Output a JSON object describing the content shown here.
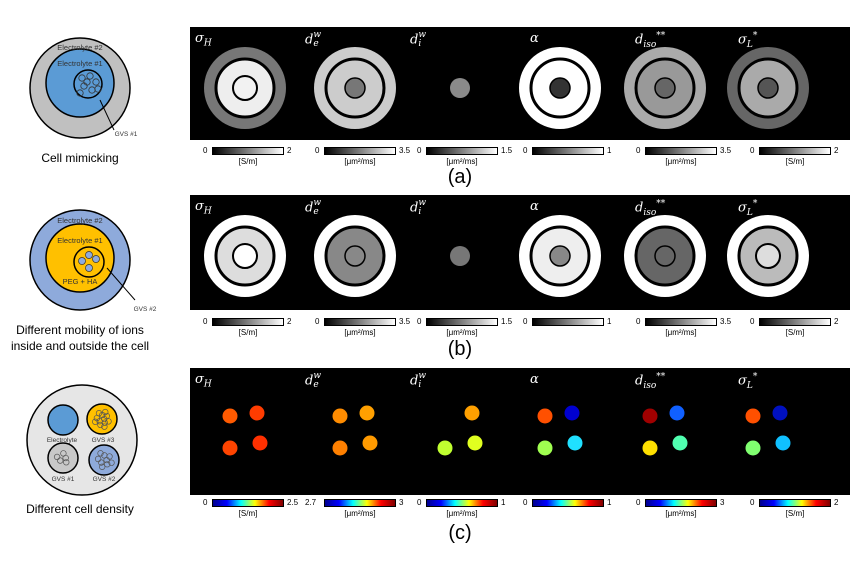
{
  "rows": [
    {
      "tag": "(a)",
      "caption": [
        "Cell mimicking"
      ],
      "diagram_labels": [
        "Electrolyte #2",
        "Electrolyte #1",
        "GVS #1"
      ],
      "colors": {
        "outer": "#c0c0c0",
        "inner": "#5b9bd5"
      },
      "colormap": "gray"
    },
    {
      "tag": "(b)",
      "caption": [
        "Different  mobility of ions",
        "inside and outside the cell"
      ],
      "diagram_labels": [
        "Electrolyte #2",
        "Electrolyte #1",
        "PEG + HA",
        "GVS #2"
      ],
      "colors": {
        "outer": "#8eaadb",
        "inner": "#ffc000"
      },
      "colormap": "gray"
    },
    {
      "tag": "(c)",
      "caption": [
        "Different   cell density"
      ],
      "diagram_labels": [
        "Electrolyte",
        "GVS #3",
        "GVS #1",
        "GVS #2"
      ],
      "colors": {
        "outer": "#e6e6e6",
        "electrolyte": "#5b9bd5",
        "gvs3": "#ffc000",
        "gvs1": "#c8c8c8",
        "gvs2": "#8eaadb"
      },
      "colormap": "jet"
    }
  ],
  "maps": [
    {
      "base": "σ",
      "sub": "H",
      "sup": "",
      "suffix": ""
    },
    {
      "base": "d",
      "sub": "e",
      "sup": "w",
      "suffix": ""
    },
    {
      "base": "d",
      "sub": "i",
      "sup": "w",
      "suffix": ""
    },
    {
      "base": "α",
      "sub": "",
      "sup": "",
      "suffix": ""
    },
    {
      "base": "d",
      "sub": "iso",
      "sup": "",
      "suffix": "**"
    },
    {
      "base": "σ",
      "sub": "L",
      "sup": "",
      "suffix": "*"
    }
  ],
  "colorbars": [
    [
      {
        "min": "0",
        "max": "2",
        "unit": "[S/m]"
      },
      {
        "min": "0",
        "max": "3.5",
        "unit": "[μm²/ms]"
      },
      {
        "min": "0",
        "max": "1.5",
        "unit": "[μm²/ms]"
      },
      {
        "min": "0",
        "max": "1",
        "unit": ""
      },
      {
        "min": "0",
        "max": "3.5",
        "unit": "[μm²/ms]"
      },
      {
        "min": "0",
        "max": "2",
        "unit": "[S/m]"
      }
    ],
    [
      {
        "min": "0",
        "max": "2",
        "unit": "[S/m]"
      },
      {
        "min": "0",
        "max": "3.5",
        "unit": "[μm²/ms]"
      },
      {
        "min": "0",
        "max": "1.5",
        "unit": "[μm²/ms]"
      },
      {
        "min": "0",
        "max": "1",
        "unit": ""
      },
      {
        "min": "0",
        "max": "3.5",
        "unit": "[μm²/ms]"
      },
      {
        "min": "0",
        "max": "2",
        "unit": "[S/m]"
      }
    ],
    [
      {
        "min": "0",
        "max": "2.5",
        "unit": "[S/m]"
      },
      {
        "min": "2.7",
        "max": "3",
        "unit": "[μm²/ms]"
      },
      {
        "min": "0",
        "max": "1",
        "unit": "[μm²/ms]"
      },
      {
        "min": "0",
        "max": "1",
        "unit": ""
      },
      {
        "min": "0",
        "max": "3",
        "unit": "[μm²/ms]"
      },
      {
        "min": "0",
        "max": "2",
        "unit": "[S/m]"
      }
    ]
  ],
  "gray_phantoms": [
    [
      {
        "outer": "#777777",
        "inner": "#eeeeee",
        "center": "#f2f2f2",
        "centerRing": true
      },
      {
        "outer": "#cccccc",
        "inner": "#cccccc",
        "center": "#777777"
      },
      {
        "outer": null,
        "inner": null,
        "center": "#8a8a8a"
      },
      {
        "outer": "#ffffff",
        "inner": "#ffffff",
        "center": "#333333"
      },
      {
        "outer": "#aaaaaa",
        "inner": "#999999",
        "center": "#666666"
      },
      {
        "outer": "#666666",
        "inner": "#aaaaaa",
        "center": "#555555"
      }
    ],
    [
      {
        "outer": "#ffffff",
        "inner": "#dddddd",
        "center": "#ffffff",
        "centerRing": true
      },
      {
        "outer": "#ffffff",
        "inner": "#888888",
        "center": "#888888"
      },
      {
        "outer": null,
        "inner": null,
        "center": "#777777"
      },
      {
        "outer": "#ffffff",
        "inner": "#eeeeee",
        "center": "#888888"
      },
      {
        "outer": "#ffffff",
        "inner": "#666666",
        "center": "#666666"
      },
      {
        "outer": "#ffffff",
        "inner": "#bbbbbb",
        "center": "#dddddd",
        "centerRing": true
      }
    ]
  ],
  "dot_colors": [
    [
      "#ff5a00",
      "#ff3c00",
      "#ff4400",
      "#ff3000"
    ],
    [
      "#ff8c00",
      "#ffa000",
      "#ff8000",
      "#ff9a00"
    ],
    [
      null,
      "#ffa000",
      "#c0ff30",
      "#e0ff20"
    ],
    [
      "#ff5000",
      "#0000d0",
      "#a0ff50",
      "#20e0ff"
    ],
    [
      "#a00000",
      "#1060ff",
      "#ffe000",
      "#50ffb0"
    ],
    [
      "#ff5000",
      "#0010c0",
      "#80ff70",
      "#10c0ff"
    ]
  ]
}
